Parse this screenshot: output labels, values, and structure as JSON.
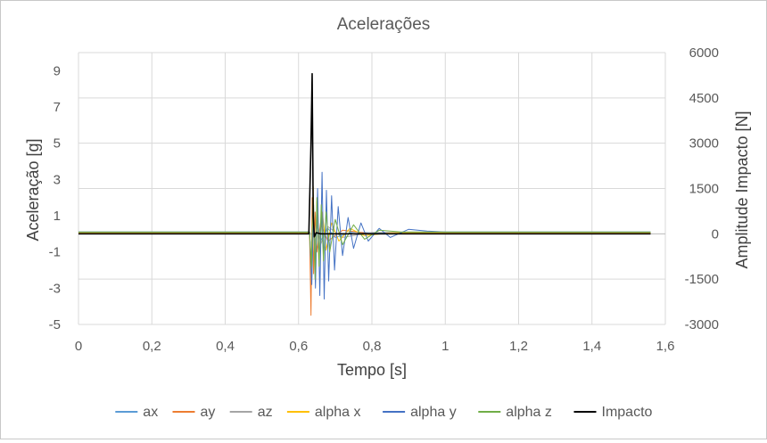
{
  "chart_data": {
    "type": "line",
    "title": "Acelerações",
    "xlabel": "Tempo [s]",
    "ylabel": "Aceleração [g]",
    "y2label": "Amplitude Impacto [N]",
    "xlim": [
      0,
      1.6
    ],
    "ylim": [
      -5,
      10
    ],
    "y2lim": [
      -3000,
      6000
    ],
    "x_ticks": [
      "0",
      "0,2",
      "0,4",
      "0,6",
      "0,8",
      "1",
      "1,2",
      "1,4",
      "1,6"
    ],
    "x_tick_values": [
      0,
      0.2,
      0.4,
      0.6,
      0.8,
      1.0,
      1.2,
      1.4,
      1.6
    ],
    "y_ticks": [
      "9",
      "7",
      "5",
      "3",
      "1",
      "-1",
      "-3",
      "-5"
    ],
    "y_tick_values": [
      9,
      7,
      5,
      3,
      1,
      -1,
      -3,
      -5
    ],
    "y2_ticks": [
      "6000",
      "4500",
      "3000",
      "1500",
      "0",
      "-1500",
      "-3000"
    ],
    "y2_tick_values": [
      6000,
      4500,
      3000,
      1500,
      0,
      -1500,
      -3000
    ],
    "grid": true,
    "legend_position": "bottom",
    "series": [
      {
        "name": "ax",
        "color": "#5b9bd5",
        "axis": "left",
        "points": [
          [
            0,
            0.05
          ],
          [
            0.63,
            0.05
          ],
          [
            0.635,
            -1.5
          ],
          [
            0.64,
            0.8
          ],
          [
            0.645,
            -0.6
          ],
          [
            0.65,
            0.5
          ],
          [
            0.66,
            -0.4
          ],
          [
            0.68,
            0.3
          ],
          [
            0.7,
            -0.2
          ],
          [
            0.75,
            0.1
          ],
          [
            0.8,
            0.05
          ],
          [
            1.56,
            0.05
          ]
        ]
      },
      {
        "name": "ay",
        "color": "#ed7d31",
        "axis": "left",
        "points": [
          [
            0,
            0.0
          ],
          [
            0.63,
            0.0
          ],
          [
            0.634,
            -4.5
          ],
          [
            0.637,
            2.0
          ],
          [
            0.641,
            -2.2
          ],
          [
            0.645,
            1.2
          ],
          [
            0.65,
            -1.0
          ],
          [
            0.66,
            0.6
          ],
          [
            0.68,
            -0.4
          ],
          [
            0.72,
            0.2
          ],
          [
            0.8,
            0.0
          ],
          [
            1.56,
            0.0
          ]
        ]
      },
      {
        "name": "az",
        "color": "#a5a5a5",
        "axis": "left",
        "points": [
          [
            0,
            0.08
          ],
          [
            0.63,
            0.08
          ],
          [
            0.636,
            -2.4
          ],
          [
            0.64,
            1.8
          ],
          [
            0.645,
            -1.3
          ],
          [
            0.65,
            1.0
          ],
          [
            0.66,
            -0.6
          ],
          [
            0.68,
            0.4
          ],
          [
            0.72,
            -0.2
          ],
          [
            0.8,
            0.08
          ],
          [
            1.56,
            0.08
          ]
        ]
      },
      {
        "name": "alpha x",
        "color": "#ffc000",
        "axis": "left",
        "points": [
          [
            0,
            0.05
          ],
          [
            0.63,
            0.05
          ],
          [
            0.635,
            -2.2
          ],
          [
            0.64,
            2.6
          ],
          [
            0.645,
            -2.0
          ],
          [
            0.65,
            1.8
          ],
          [
            0.655,
            -1.4
          ],
          [
            0.665,
            1.2
          ],
          [
            0.675,
            -0.9
          ],
          [
            0.69,
            0.6
          ],
          [
            0.71,
            -0.4
          ],
          [
            0.74,
            0.3
          ],
          [
            0.78,
            -0.1
          ],
          [
            0.85,
            0.05
          ],
          [
            1.56,
            0.05
          ]
        ]
      },
      {
        "name": "alpha y",
        "color": "#4472c4",
        "axis": "left",
        "points": [
          [
            0,
            0.1
          ],
          [
            0.63,
            0.1
          ],
          [
            0.636,
            -2.8
          ],
          [
            0.641,
            1.6
          ],
          [
            0.646,
            -3.0
          ],
          [
            0.652,
            2.5
          ],
          [
            0.658,
            -3.4
          ],
          [
            0.664,
            3.4
          ],
          [
            0.67,
            -3.6
          ],
          [
            0.676,
            2.4
          ],
          [
            0.682,
            -2.6
          ],
          [
            0.69,
            2.1
          ],
          [
            0.698,
            -2.0
          ],
          [
            0.708,
            1.5
          ],
          [
            0.72,
            -1.2
          ],
          [
            0.735,
            0.9
          ],
          [
            0.75,
            -0.8
          ],
          [
            0.77,
            0.6
          ],
          [
            0.79,
            -0.4
          ],
          [
            0.82,
            0.3
          ],
          [
            0.85,
            -0.2
          ],
          [
            0.9,
            0.25
          ],
          [
            0.95,
            0.15
          ],
          [
            1.0,
            0.1
          ],
          [
            1.56,
            0.1
          ]
        ]
      },
      {
        "name": "alpha z",
        "color": "#70ad47",
        "axis": "left",
        "points": [
          [
            0,
            0.1
          ],
          [
            0.63,
            0.1
          ],
          [
            0.635,
            -1.8
          ],
          [
            0.64,
            2.2
          ],
          [
            0.645,
            -2.5
          ],
          [
            0.65,
            2.0
          ],
          [
            0.656,
            -1.8
          ],
          [
            0.662,
            1.6
          ],
          [
            0.668,
            -1.5
          ],
          [
            0.675,
            1.2
          ],
          [
            0.685,
            -1.0
          ],
          [
            0.7,
            0.8
          ],
          [
            0.72,
            -0.6
          ],
          [
            0.75,
            0.5
          ],
          [
            0.78,
            -0.3
          ],
          [
            0.82,
            0.2
          ],
          [
            0.88,
            0.1
          ],
          [
            1.56,
            0.1
          ]
        ]
      },
      {
        "name": "Impacto",
        "color": "#000000",
        "axis": "right",
        "points": [
          [
            0,
            0
          ],
          [
            0.628,
            0
          ],
          [
            0.634,
            3000
          ],
          [
            0.637,
            5300
          ],
          [
            0.64,
            600
          ],
          [
            0.643,
            -100
          ],
          [
            0.648,
            40
          ],
          [
            0.66,
            0
          ],
          [
            1.56,
            0
          ]
        ]
      }
    ]
  }
}
